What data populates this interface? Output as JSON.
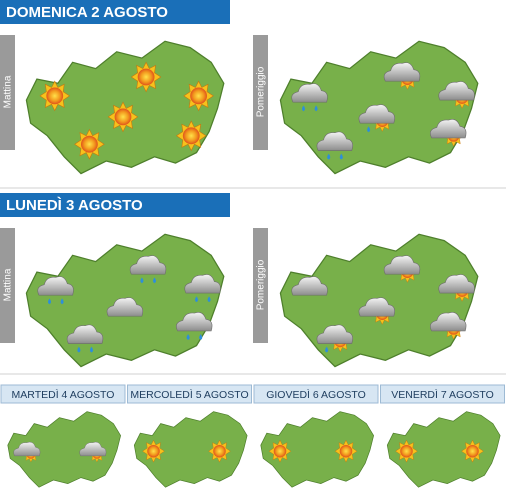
{
  "days": [
    {
      "title": "DOMENICA 2 AGOSTO",
      "morning": "Mattina",
      "afternoon": "Pomeriggio"
    },
    {
      "title": "LUNEDÌ 3 AGOSTO",
      "morning": "Mattina",
      "afternoon": "Pomeriggio"
    }
  ],
  "outlook": [
    "MARTEDÌ 4 AGOSTO",
    "MERCOLEDÌ 5 AGOSTO",
    "GIOVEDÌ 6 AGOSTO",
    "VENERDÌ 7 AGOSTO"
  ]
}
